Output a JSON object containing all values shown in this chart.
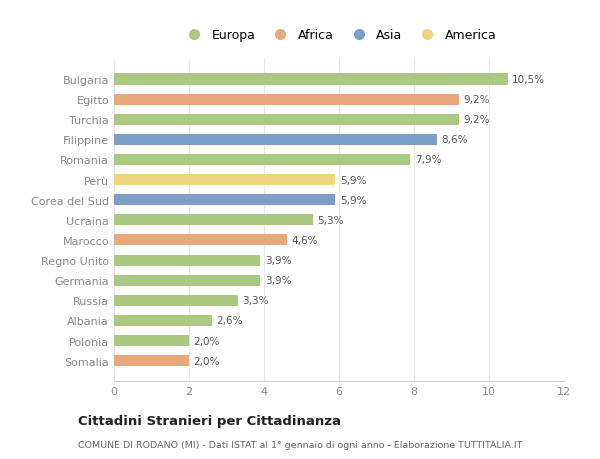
{
  "categories": [
    "Bulgaria",
    "Egitto",
    "Turchia",
    "Filippine",
    "Romania",
    "Perù",
    "Corea del Sud",
    "Ucraina",
    "Marocco",
    "Regno Unito",
    "Germania",
    "Russia",
    "Albania",
    "Polonia",
    "Somalia"
  ],
  "values": [
    10.5,
    9.2,
    9.2,
    8.6,
    7.9,
    5.9,
    5.9,
    5.3,
    4.6,
    3.9,
    3.9,
    3.3,
    2.6,
    2.0,
    2.0
  ],
  "labels": [
    "10,5%",
    "9,2%",
    "9,2%",
    "8,6%",
    "7,9%",
    "5,9%",
    "5,9%",
    "5,3%",
    "4,6%",
    "3,9%",
    "3,9%",
    "3,3%",
    "2,6%",
    "2,0%",
    "2,0%"
  ],
  "continent": [
    "Europa",
    "Africa",
    "Europa",
    "Asia",
    "Europa",
    "America",
    "Asia",
    "Europa",
    "Africa",
    "Europa",
    "Europa",
    "Europa",
    "Europa",
    "Europa",
    "Africa"
  ],
  "colors": {
    "Europa": "#a8c97f",
    "Africa": "#e8a87c",
    "Asia": "#7b9ec9",
    "America": "#f0d580"
  },
  "legend_order": [
    "Europa",
    "Africa",
    "Asia",
    "America"
  ],
  "title": "Cittadini Stranieri per Cittadinanza",
  "subtitle": "COMUNE DI RODANO (MI) - Dati ISTAT al 1° gennaio di ogni anno - Elaborazione TUTTITALIA.IT",
  "xlim": [
    0,
    12
  ],
  "xticks": [
    0,
    2,
    4,
    6,
    8,
    10,
    12
  ],
  "background_color": "#ffffff",
  "bar_background": "#ffffff",
  "grid_color": "#e8e8e8"
}
